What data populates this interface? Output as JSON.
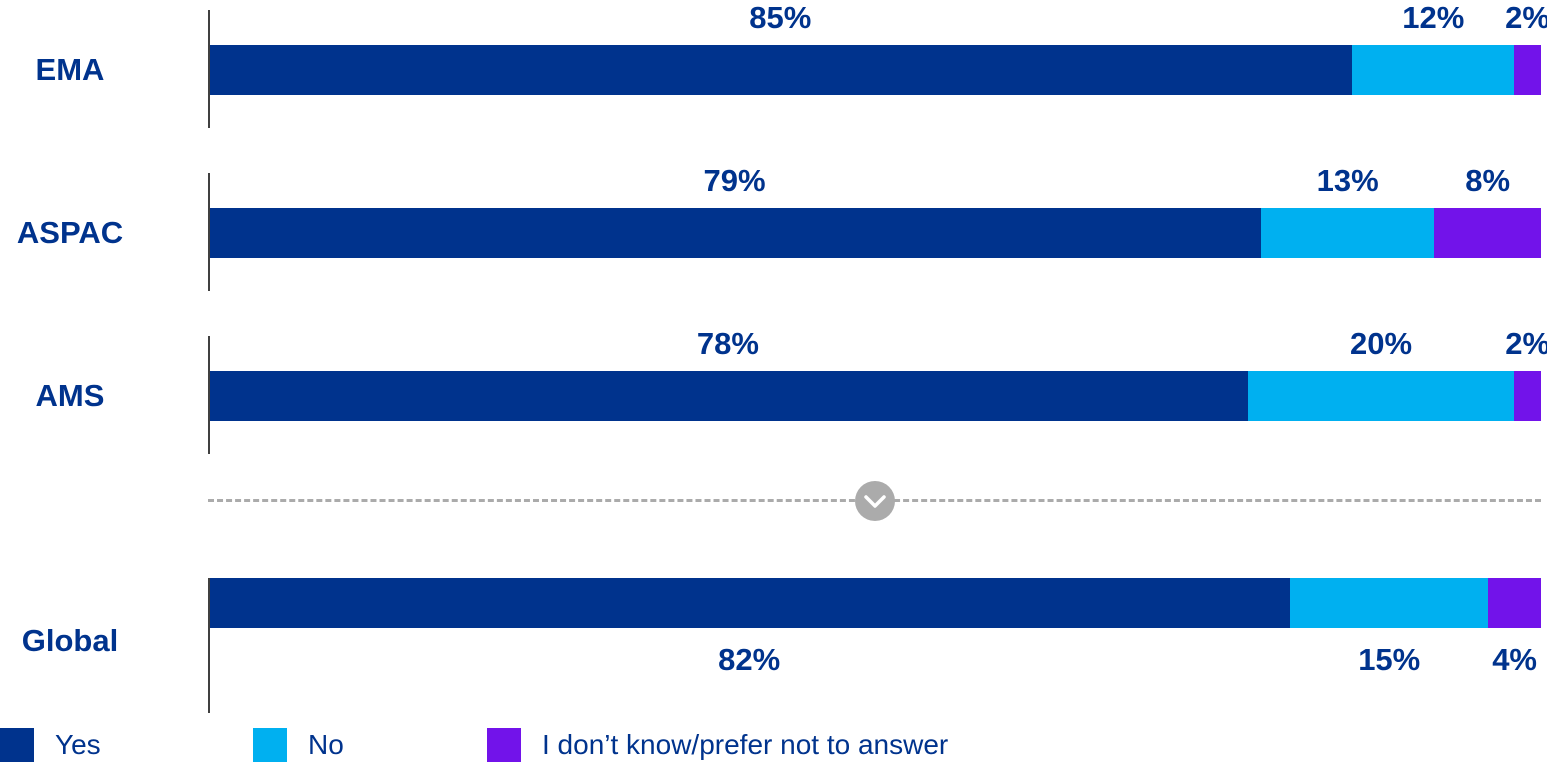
{
  "chart_data": {
    "type": "bar",
    "orientation": "horizontal",
    "stacked": true,
    "unit": "percent",
    "xlim": [
      0,
      100
    ],
    "grid": false,
    "categories": [
      "EMA",
      "ASPAC",
      "AMS",
      "Global"
    ],
    "series": [
      {
        "name": "Yes",
        "color": "#00338D",
        "values": [
          85,
          79,
          78,
          82
        ]
      },
      {
        "name": "No",
        "color": "#00B0F0",
        "values": [
          12,
          13,
          20,
          15
        ]
      },
      {
        "name": "I don’t know/prefer not to answer",
        "color": "#7213EA",
        "values": [
          2,
          8,
          2,
          4
        ]
      }
    ],
    "value_labels": [
      [
        "85%",
        "12%",
        "2%"
      ],
      [
        "79%",
        "13%",
        "8%"
      ],
      [
        "78%",
        "20%",
        "2%"
      ],
      [
        "82%",
        "15%",
        "4%"
      ]
    ],
    "value_label_position": [
      "above",
      "above",
      "above",
      "below"
    ],
    "separator": {
      "after_category": "AMS",
      "style": "dashed-line",
      "icon": "chevron-down"
    }
  },
  "legend": {
    "position": "bottom-left",
    "items": [
      {
        "label": "Yes",
        "color": "#00338D"
      },
      {
        "label": "No",
        "color": "#00B0F0"
      },
      {
        "label": "I don’t know/prefer not to answer",
        "color": "#7213EA"
      }
    ]
  },
  "colors": {
    "category_text": "#00338D",
    "value_text": "#00338D",
    "axis_tick": "#404040",
    "separator_line": "#ABABAB",
    "chevron_circle": "#ABABAB",
    "chevron_glyph": "#FFFFFF",
    "background": "#FFFFFF"
  }
}
